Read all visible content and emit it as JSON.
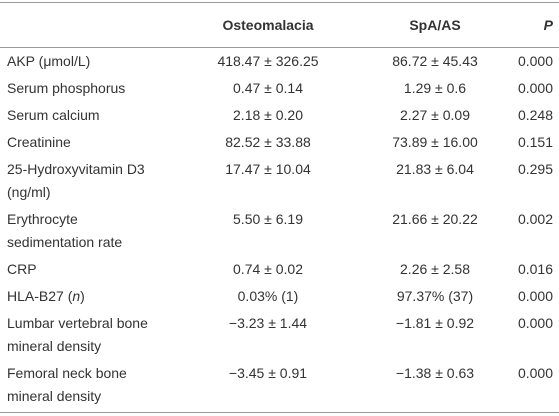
{
  "table": {
    "header": [
      "Osteomalacia",
      "SpA/AS",
      "P"
    ],
    "rows": [
      {
        "label_lines": [
          "AKP (μmol/L)"
        ],
        "osteomalacia": "418.47 ± 326.25",
        "spa_as": "86.72 ± 45.43",
        "p": "0.000"
      },
      {
        "label_lines": [
          "Serum phosphorus"
        ],
        "osteomalacia": "0.47 ± 0.14",
        "spa_as": "1.29 ± 0.6",
        "p": "0.000"
      },
      {
        "label_lines": [
          "Serum calcium"
        ],
        "osteomalacia": "2.18 ± 0.20",
        "spa_as": "2.27 ± 0.09",
        "p": "0.248"
      },
      {
        "label_lines": [
          "Creatinine"
        ],
        "osteomalacia": "82.52 ± 33.88",
        "spa_as": "73.89 ± 16.00",
        "p": "0.151"
      },
      {
        "label_lines": [
          "25-Hydroxyvitamin D3",
          "(ng/ml)"
        ],
        "osteomalacia": "17.47 ± 10.04",
        "spa_as": "21.83 ± 6.04",
        "p": "0.295"
      },
      {
        "label_lines": [
          "Erythrocyte",
          "sedimentation rate"
        ],
        "osteomalacia": "5.50 ± 6.19",
        "spa_as": "21.66 ± 20.22",
        "p": "0.002"
      },
      {
        "label_lines": [
          "CRP"
        ],
        "osteomalacia": "0.74 ± 0.02",
        "spa_as": "2.26 ± 2.58",
        "p": "0.016"
      },
      {
        "label_parts": [
          "HLA-B27 (",
          "n",
          ")"
        ],
        "osteomalacia": "0.03% (1)",
        "spa_as": "97.37% (37)",
        "p": "0.000"
      },
      {
        "label_lines": [
          "Lumbar vertebral bone",
          "mineral density"
        ],
        "osteomalacia": "−3.23 ± 1.44",
        "spa_as": "−1.81 ± 0.92",
        "p": "0.000"
      },
      {
        "label_lines": [
          "Femoral neck bone",
          "mineral density"
        ],
        "osteomalacia": "−3.45 ± 0.91",
        "spa_as": "−1.38 ± 0.63",
        "p": "0.000"
      }
    ]
  }
}
